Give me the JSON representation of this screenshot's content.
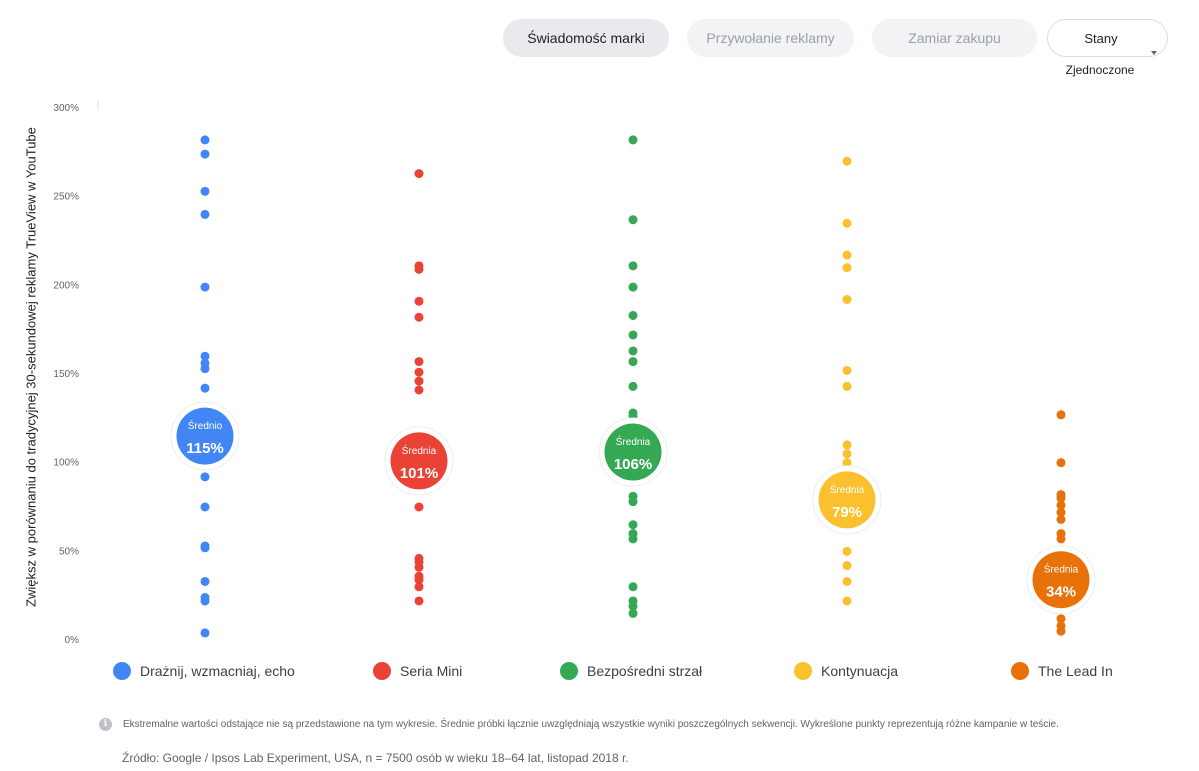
{
  "tabs": [
    {
      "label": "Świadomość marki",
      "active": true
    },
    {
      "label": "Przywołanie reklamy",
      "active": false
    },
    {
      "label": "Zamiar zakupu",
      "active": false
    }
  ],
  "region_select": {
    "line1": "Stany",
    "line2": "Zjednoczone"
  },
  "chart_data": {
    "type": "scatter",
    "title": "",
    "xlabel": "",
    "ylabel": "Zwiększ w porównaniu do tradycyjnej 30-sekundowej reklamy TrueView w YouTube",
    "ylim": [
      0,
      300
    ],
    "y_ticks": [
      0,
      50,
      100,
      150,
      200,
      250,
      300
    ],
    "y_tick_labels": [
      "0%",
      "50%",
      "100%",
      "150%",
      "200%",
      "250%",
      "300%"
    ],
    "categories": [
      "Drażnij, wzmacniaj, echo",
      "Seria Mini",
      "Bezpośredni strzał",
      "Kontynuacja",
      "The Lead In"
    ],
    "series": [
      {
        "name": "Drażnij, wzmacniaj, echo",
        "color": "#4285f4",
        "average_label": "Średnio",
        "average": 115,
        "average_text": "115%",
        "values": [
          282,
          274,
          253,
          240,
          199,
          160,
          156,
          153,
          142,
          92,
          75,
          53,
          52,
          33,
          24,
          22,
          4
        ]
      },
      {
        "name": "Seria Mini",
        "color": "#ea4335",
        "average_label": "Średnia",
        "average": 101,
        "average_text": "101%",
        "values": [
          263,
          211,
          209,
          191,
          182,
          157,
          151,
          146,
          141,
          75,
          46,
          44,
          41,
          36,
          34,
          30,
          22
        ]
      },
      {
        "name": "Bezpośredni strzał",
        "color": "#34a853",
        "average_label": "Średnia",
        "average": 106,
        "average_text": "106%",
        "values": [
          282,
          237,
          211,
          199,
          183,
          172,
          163,
          157,
          143,
          128,
          126,
          81,
          78,
          65,
          60,
          57,
          30,
          22,
          19,
          15
        ]
      },
      {
        "name": "Kontynuacja",
        "color": "#fbc02d",
        "average_label": "Średnia",
        "average": 79,
        "average_text": "79%",
        "values": [
          270,
          235,
          217,
          210,
          192,
          152,
          143,
          110,
          105,
          100,
          50,
          42,
          33,
          22
        ]
      },
      {
        "name": "The Lead In",
        "color": "#e8710a",
        "average_label": "Średnia",
        "average": 34,
        "average_text": "34%",
        "values": [
          127,
          100,
          82,
          80,
          76,
          72,
          68,
          60,
          57,
          12,
          8,
          5
        ]
      }
    ]
  },
  "note": "Ekstremalne wartości odstające nie są przedstawione na tym wykresie. Średnie próbki łącznie uwzględniają wszystkie wyniki poszczególnych sekwencji. Wykreślone punkty reprezentują różne kampanie w teście.",
  "info_icon_glyph": "i",
  "source": "Źródło: Google / Ipsos Lab Experiment, USA, n = 7500 osób w wieku 18–64 lat, listopad 2018 r."
}
